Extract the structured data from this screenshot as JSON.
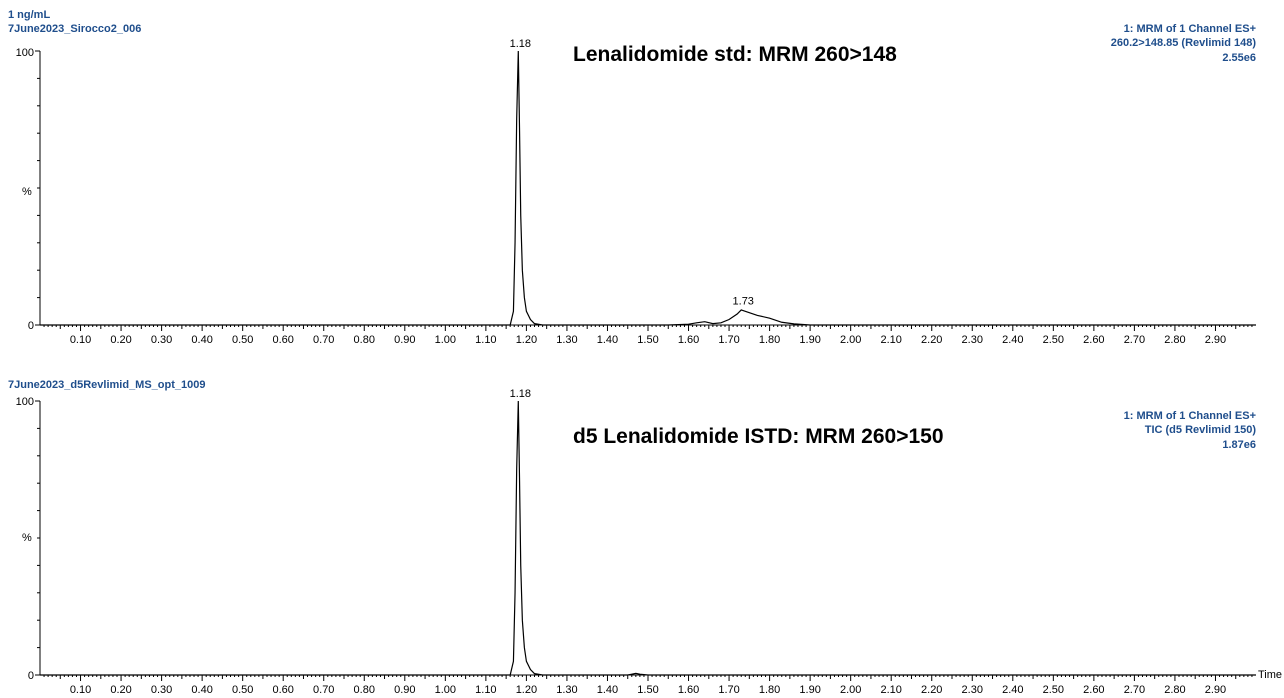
{
  "colors": {
    "header_blue": "#1f4e8c",
    "trace": "#000000",
    "axis": "#000000"
  },
  "chart_data": [
    {
      "type": "line",
      "sample_label": "1 ng/mL",
      "file_name": "7June2023_Sirocco2_006",
      "annotation": "Lenalidomide std: MRM 260>148",
      "trace_info": [
        "1: MRM of 1 Channel ES+",
        "260.2>148.85 (Revlimid 148)",
        "2.55e6"
      ],
      "ylabel": "%",
      "xlabel": "",
      "xlim": [
        0.0,
        3.0
      ],
      "ylim": [
        0,
        100
      ],
      "y_ticks": [
        "0",
        "100"
      ],
      "x_tick_labels": [
        "0.10",
        "0.20",
        "0.30",
        "0.40",
        "0.50",
        "0.60",
        "0.70",
        "0.80",
        "0.90",
        "1.00",
        "1.10",
        "1.20",
        "1.30",
        "1.40",
        "1.50",
        "1.60",
        "1.70",
        "1.80",
        "1.90",
        "2.00",
        "2.10",
        "2.20",
        "2.30",
        "2.40",
        "2.50",
        "2.60",
        "2.70",
        "2.80",
        "2.90"
      ],
      "peak_labels": [
        {
          "x": 1.18,
          "y": 100,
          "label": "1.18"
        },
        {
          "x": 1.73,
          "y": 6,
          "label": "1.73"
        }
      ],
      "series": [
        {
          "x": [
            0.0,
            1.16,
            1.168,
            1.172,
            1.176,
            1.18,
            1.183,
            1.186,
            1.19,
            1.195,
            1.2,
            1.21,
            1.22,
            1.24,
            1.3,
            1.55,
            1.6,
            1.62,
            1.64,
            1.66,
            1.68,
            1.7,
            1.72,
            1.73,
            1.75,
            1.77,
            1.8,
            1.83,
            1.86,
            1.9,
            3.0
          ],
          "y": [
            0,
            0,
            5,
            30,
            75,
            100,
            72,
            40,
            20,
            10,
            5,
            2,
            0.5,
            0,
            0,
            0,
            0.3,
            0.8,
            1.2,
            0.5,
            0.8,
            2,
            4,
            5.5,
            4.5,
            3.5,
            2.5,
            1,
            0.4,
            0,
            0
          ]
        }
      ]
    },
    {
      "type": "line",
      "sample_label": "",
      "file_name": "7June2023_d5Revlimid_MS_opt_1009",
      "annotation": "d5 Lenalidomide ISTD: MRM 260>150",
      "trace_info": [
        "1: MRM of 1 Channel ES+",
        "TIC (d5 Revlimid 150)",
        "1.87e6"
      ],
      "ylabel": "%",
      "xlabel": "Time",
      "xlim": [
        0.0,
        3.0
      ],
      "ylim": [
        0,
        100
      ],
      "y_ticks": [
        "0",
        "100"
      ],
      "x_tick_labels": [
        "0.10",
        "0.20",
        "0.30",
        "0.40",
        "0.50",
        "0.60",
        "0.70",
        "0.80",
        "0.90",
        "1.00",
        "1.10",
        "1.20",
        "1.30",
        "1.40",
        "1.50",
        "1.60",
        "1.70",
        "1.80",
        "1.90",
        "2.00",
        "2.10",
        "2.20",
        "2.30",
        "2.40",
        "2.50",
        "2.60",
        "2.70",
        "2.80",
        "2.90"
      ],
      "peak_labels": [
        {
          "x": 1.18,
          "y": 100,
          "label": "1.18"
        }
      ],
      "series": [
        {
          "x": [
            0.0,
            1.16,
            1.168,
            1.172,
            1.176,
            1.18,
            1.183,
            1.186,
            1.19,
            1.195,
            1.2,
            1.21,
            1.22,
            1.24,
            1.45,
            1.46,
            1.47,
            1.48,
            1.5,
            3.0
          ],
          "y": [
            0,
            0,
            5,
            30,
            75,
            100,
            72,
            40,
            20,
            10,
            5,
            2,
            0.5,
            0,
            0,
            0.3,
            0.6,
            0.3,
            0,
            0
          ]
        }
      ]
    }
  ]
}
